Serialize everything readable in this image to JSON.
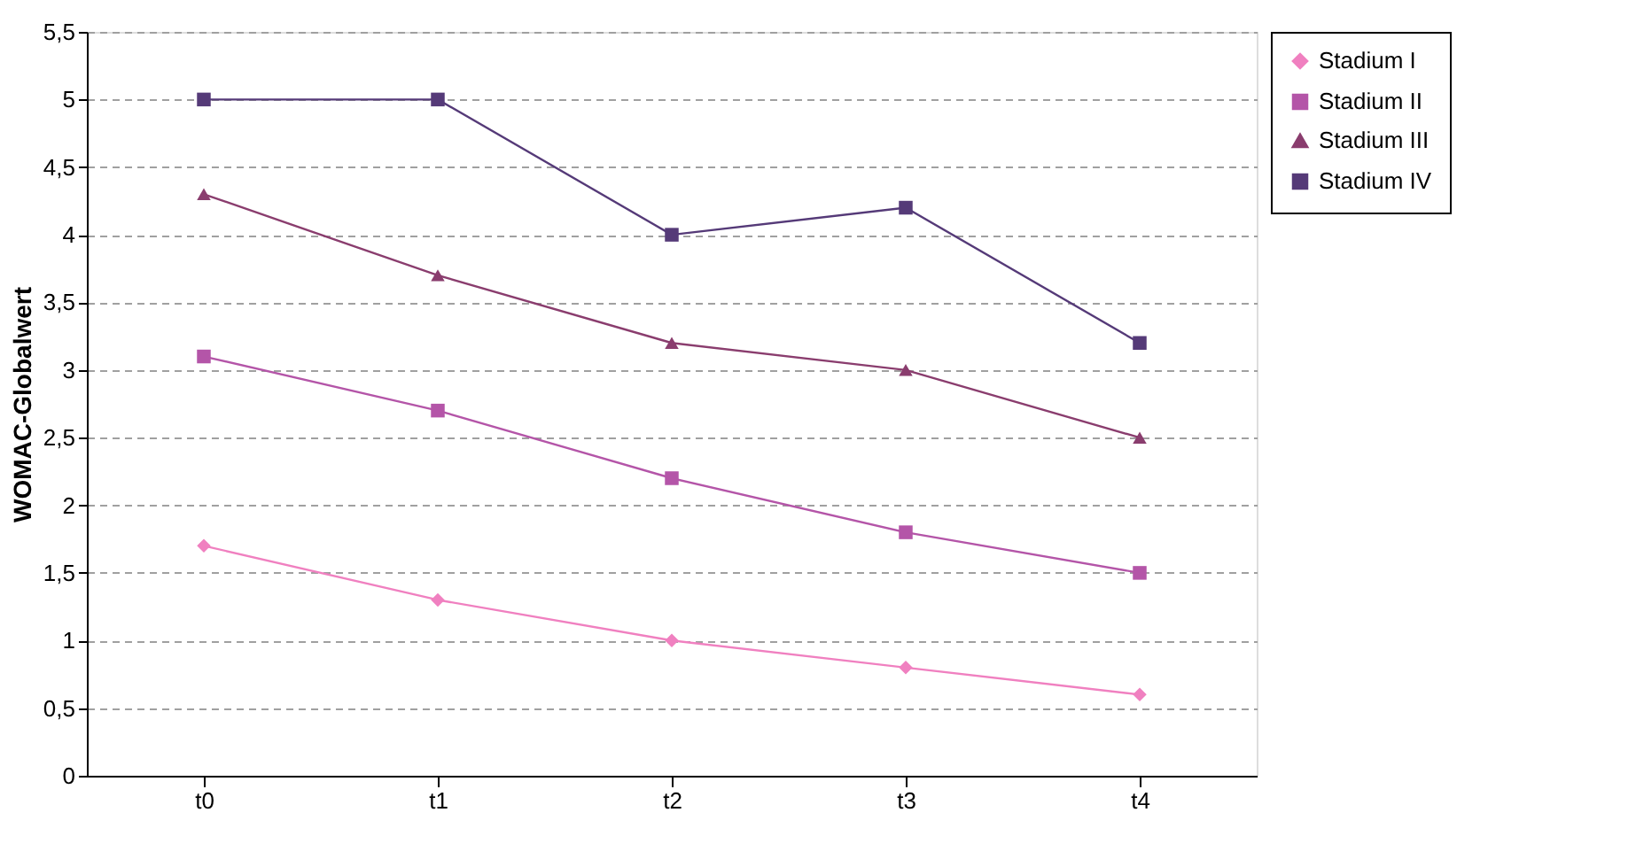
{
  "chart_data": {
    "type": "line",
    "ylabel": "WOMAC-Globalwert",
    "categories": [
      "t0",
      "t1",
      "t2",
      "t3",
      "t4"
    ],
    "series": [
      {
        "name": "Stadium I",
        "color": "#f080c0",
        "marker": "diamond",
        "values": [
          1.7,
          1.3,
          1.0,
          0.8,
          0.6
        ]
      },
      {
        "name": "Stadium II",
        "color": "#b455a8",
        "marker": "square",
        "values": [
          3.1,
          2.7,
          2.2,
          1.8,
          1.5
        ]
      },
      {
        "name": "Stadium III",
        "color": "#8a3d6e",
        "marker": "triangle",
        "values": [
          4.3,
          3.7,
          3.2,
          3.0,
          2.5
        ]
      },
      {
        "name": "Stadium IV",
        "color": "#553a78",
        "marker": "square",
        "values": [
          5.0,
          5.0,
          4.0,
          4.2,
          3.2
        ]
      }
    ],
    "ylim": [
      0,
      5.5
    ],
    "yticks": [
      0,
      {
        "value": 0.5,
        "label": "0,5"
      },
      1,
      {
        "value": 1.5,
        "label": "1,5"
      },
      2,
      {
        "value": 2.5,
        "label": "2,5"
      },
      3,
      {
        "value": 3.5,
        "label": "3,5"
      },
      4,
      {
        "value": 4.5,
        "label": "4,5"
      },
      5,
      {
        "value": 5.5,
        "label": "5,5"
      }
    ],
    "grid": "y",
    "legend": "right",
    "line_style": "solid"
  }
}
